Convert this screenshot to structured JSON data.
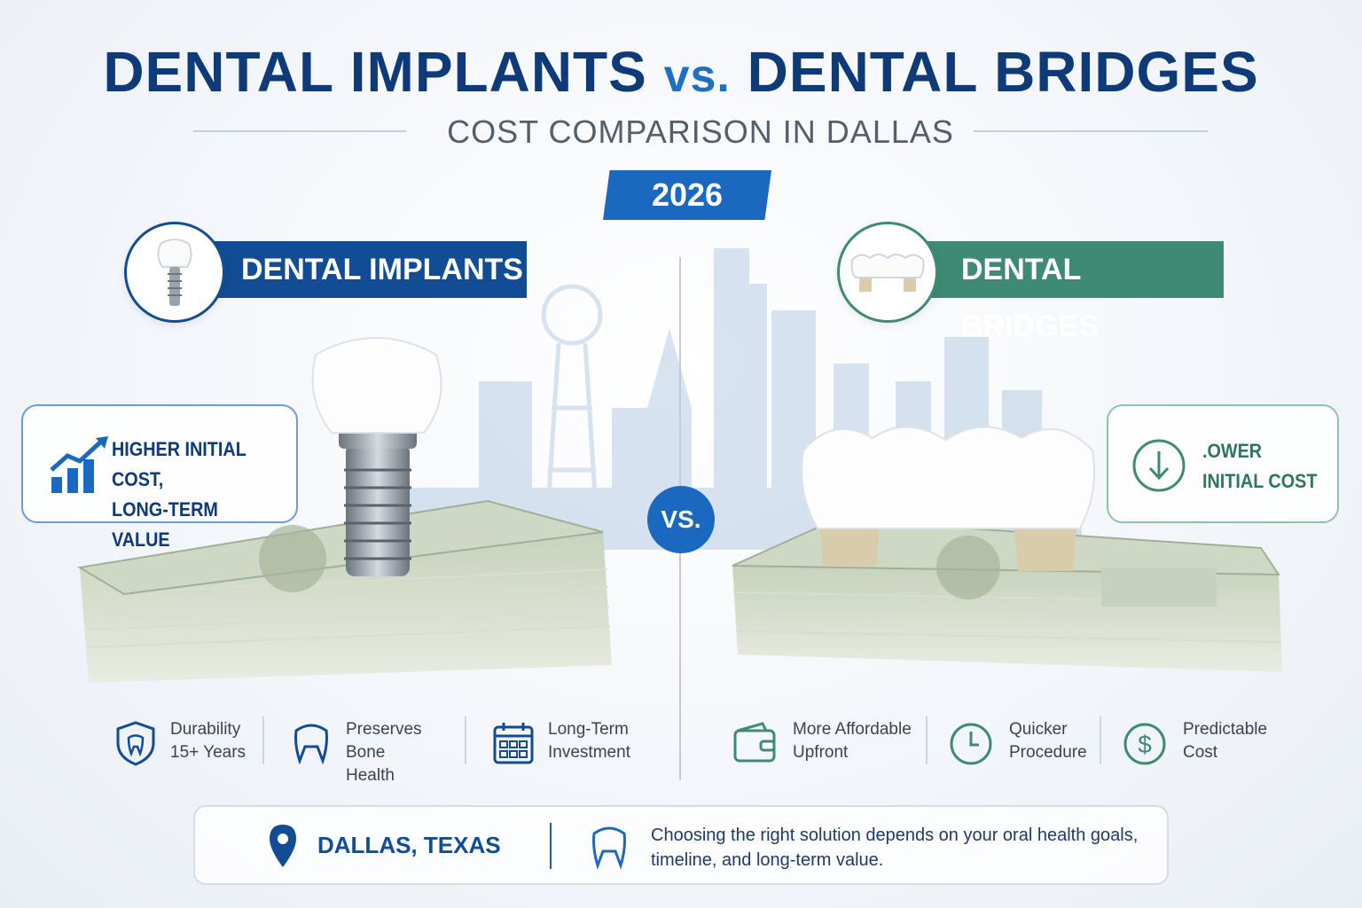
{
  "header": {
    "title_left": "DENTAL IMPLANTS",
    "title_vs": "vs.",
    "title_right": "DENTAL BRIDGES",
    "subtitle": "COST COMPARISON IN DALLAS",
    "year": "2026"
  },
  "vs_label": "VS.",
  "implants": {
    "label": "DENTAL IMPLANTS",
    "callout_line1": "HIGHER INITIAL COST,",
    "callout_line2": "LONG-TERM VALUE",
    "features": [
      {
        "line1": "Durability",
        "line2": "15+ Years",
        "icon": "shield-tooth-icon"
      },
      {
        "line1": "Preserves Bone",
        "line2": "Health",
        "icon": "tooth-icon"
      },
      {
        "line1": "Long-Term",
        "line2": "Investment",
        "icon": "calendar-icon"
      }
    ],
    "accent": "#124c95"
  },
  "bridges": {
    "label": "DENTAL BRIDGES",
    "callout_line1": ".OWER",
    "callout_line2": "INITIAL COST",
    "features": [
      {
        "line1": "More Affordable",
        "line2": "Upfront",
        "icon": "wallet-icon"
      },
      {
        "line1": "Quicker",
        "line2": "Procedure",
        "icon": "clock-icon"
      },
      {
        "line1": "Predictable",
        "line2": "Cost",
        "icon": "dollar-circle-icon"
      }
    ],
    "accent": "#3e8a73"
  },
  "footer": {
    "location": "DALLAS, TEXAS",
    "message": "Choosing the right solution depends on your oral health goals, timeline, and long-term value."
  }
}
